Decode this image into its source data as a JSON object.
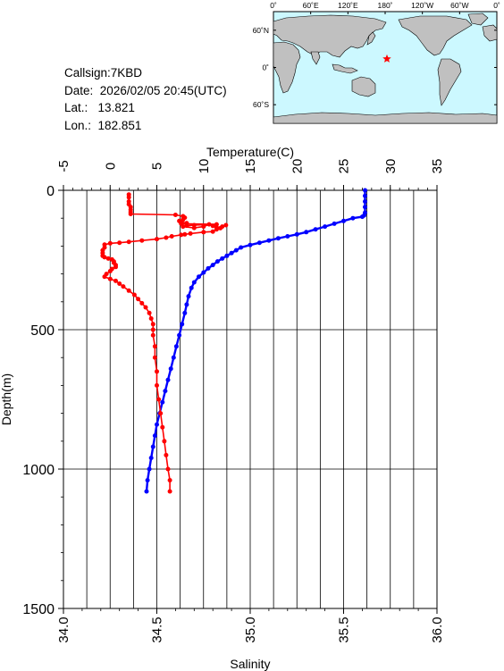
{
  "info": {
    "callsign_label": "Callsign:",
    "callsign": "7KBD",
    "date_label": "Date:",
    "date": "2026/02/05 20:45(UTC)",
    "lat_label": "Lat.:",
    "lat": "13.821",
    "lon_label": "Lon.:",
    "lon": "182.851"
  },
  "map": {
    "lon_ticks": [
      "0˚",
      "60˚E",
      "120˚E",
      "180˚",
      "120˚W",
      "60˚W",
      "0˚"
    ],
    "lat_ticks": [
      "60˚N",
      "0˚",
      "60˚S"
    ],
    "marker": "star",
    "marker_color": "#ff0000",
    "ocean_color": "#ccf8ff",
    "land_color": "#c0c0c0"
  },
  "chart_data": {
    "type": "line",
    "ylabel": "Depth(m)",
    "y_range": [
      0,
      1500
    ],
    "y_ticks": [
      "0",
      "500",
      "1000",
      "1500"
    ],
    "y_inverted": true,
    "grid": true,
    "top_axis": {
      "label": "Temperature(C)",
      "range": [
        -5,
        35
      ],
      "ticks": [
        "-5",
        "0",
        "5",
        "10",
        "15",
        "20",
        "25",
        "30",
        "35"
      ]
    },
    "bottom_axis": {
      "label": "Salinity",
      "range": [
        34.0,
        36.0
      ],
      "ticks": [
        "34.0",
        "34.5",
        "35.0",
        "35.5",
        "36.0"
      ]
    },
    "series": [
      {
        "color": "#0000ff",
        "axis": "top",
        "points": [
          [
            27.3,
            0
          ],
          [
            27.3,
            20
          ],
          [
            27.3,
            40
          ],
          [
            27.3,
            60
          ],
          [
            27.3,
            80
          ],
          [
            27.2,
            90
          ],
          [
            27.0,
            95
          ],
          [
            26.0,
            100
          ],
          [
            25.0,
            110
          ],
          [
            24.0,
            120
          ],
          [
            23.0,
            130
          ],
          [
            22.0,
            140
          ],
          [
            21.0,
            150
          ],
          [
            20.0,
            158
          ],
          [
            19.0,
            165
          ],
          [
            18.0,
            172
          ],
          [
            17.0,
            180
          ],
          [
            16.0,
            188
          ],
          [
            15.0,
            196
          ],
          [
            14.0,
            205
          ],
          [
            13.5,
            215
          ],
          [
            13.0,
            225
          ],
          [
            12.5,
            235
          ],
          [
            12.0,
            245
          ],
          [
            11.5,
            255
          ],
          [
            11.0,
            268
          ],
          [
            10.5,
            280
          ],
          [
            10.0,
            295
          ],
          [
            9.5,
            310
          ],
          [
            9.0,
            330
          ],
          [
            8.7,
            350
          ],
          [
            8.4,
            380
          ],
          [
            8.2,
            410
          ],
          [
            8.0,
            440
          ],
          [
            7.7,
            480
          ],
          [
            7.4,
            520
          ],
          [
            7.1,
            560
          ],
          [
            6.8,
            600
          ],
          [
            6.5,
            640
          ],
          [
            6.2,
            680
          ],
          [
            5.9,
            720
          ],
          [
            5.6,
            760
          ],
          [
            5.3,
            800
          ],
          [
            5.0,
            840
          ],
          [
            4.8,
            880
          ],
          [
            4.6,
            920
          ],
          [
            4.4,
            960
          ],
          [
            4.2,
            1000
          ],
          [
            4.0,
            1040
          ],
          [
            3.9,
            1080
          ]
        ]
      },
      {
        "color": "#ff0000",
        "axis": "bottom",
        "points": [
          [
            34.35,
            15
          ],
          [
            34.35,
            25
          ],
          [
            34.35,
            40
          ],
          [
            34.35,
            50
          ],
          [
            34.36,
            60
          ],
          [
            34.36,
            70
          ],
          [
            34.36,
            78
          ],
          [
            34.36,
            85
          ],
          [
            34.6,
            88
          ],
          [
            34.64,
            93
          ],
          [
            34.65,
            98
          ],
          [
            34.64,
            105
          ],
          [
            34.62,
            110
          ],
          [
            34.63,
            113
          ],
          [
            34.66,
            118
          ],
          [
            34.63,
            120
          ],
          [
            34.82,
            122
          ],
          [
            34.7,
            125
          ],
          [
            34.66,
            127
          ],
          [
            34.64,
            130
          ],
          [
            34.7,
            135
          ],
          [
            34.75,
            130
          ],
          [
            34.78,
            122
          ],
          [
            34.8,
            128
          ],
          [
            34.82,
            133
          ],
          [
            34.84,
            136
          ],
          [
            34.85,
            130
          ],
          [
            34.87,
            125
          ],
          [
            34.82,
            140
          ],
          [
            34.8,
            148
          ],
          [
            34.75,
            150
          ],
          [
            34.68,
            155
          ],
          [
            34.65,
            158
          ],
          [
            34.63,
            160
          ],
          [
            34.58,
            165
          ],
          [
            34.55,
            170
          ],
          [
            34.5,
            175
          ],
          [
            34.42,
            180
          ],
          [
            34.35,
            185
          ],
          [
            34.3,
            188
          ],
          [
            34.25,
            190
          ],
          [
            34.22,
            195
          ],
          [
            34.22,
            205
          ],
          [
            34.21,
            215
          ],
          [
            34.21,
            225
          ],
          [
            34.21,
            235
          ],
          [
            34.22,
            240
          ],
          [
            34.24,
            245
          ],
          [
            34.26,
            248
          ],
          [
            34.27,
            255
          ],
          [
            34.27,
            260
          ],
          [
            34.28,
            268
          ],
          [
            34.28,
            275
          ],
          [
            34.26,
            282
          ],
          [
            34.25,
            290
          ],
          [
            34.23,
            300
          ],
          [
            34.22,
            310
          ],
          [
            34.25,
            318
          ],
          [
            34.28,
            325
          ],
          [
            34.3,
            335
          ],
          [
            34.32,
            345
          ],
          [
            34.35,
            360
          ],
          [
            34.38,
            375
          ],
          [
            34.4,
            390
          ],
          [
            34.42,
            405
          ],
          [
            34.44,
            420
          ],
          [
            34.46,
            440
          ],
          [
            34.47,
            460
          ],
          [
            34.48,
            480
          ],
          [
            34.48,
            500
          ],
          [
            34.48,
            520
          ],
          [
            34.49,
            560
          ],
          [
            34.49,
            600
          ],
          [
            34.5,
            650
          ],
          [
            34.5,
            700
          ],
          [
            34.51,
            750
          ],
          [
            34.52,
            800
          ],
          [
            34.53,
            850
          ],
          [
            34.54,
            900
          ],
          [
            34.55,
            950
          ],
          [
            34.56,
            1000
          ],
          [
            34.57,
            1040
          ],
          [
            34.57,
            1080
          ]
        ]
      }
    ]
  }
}
